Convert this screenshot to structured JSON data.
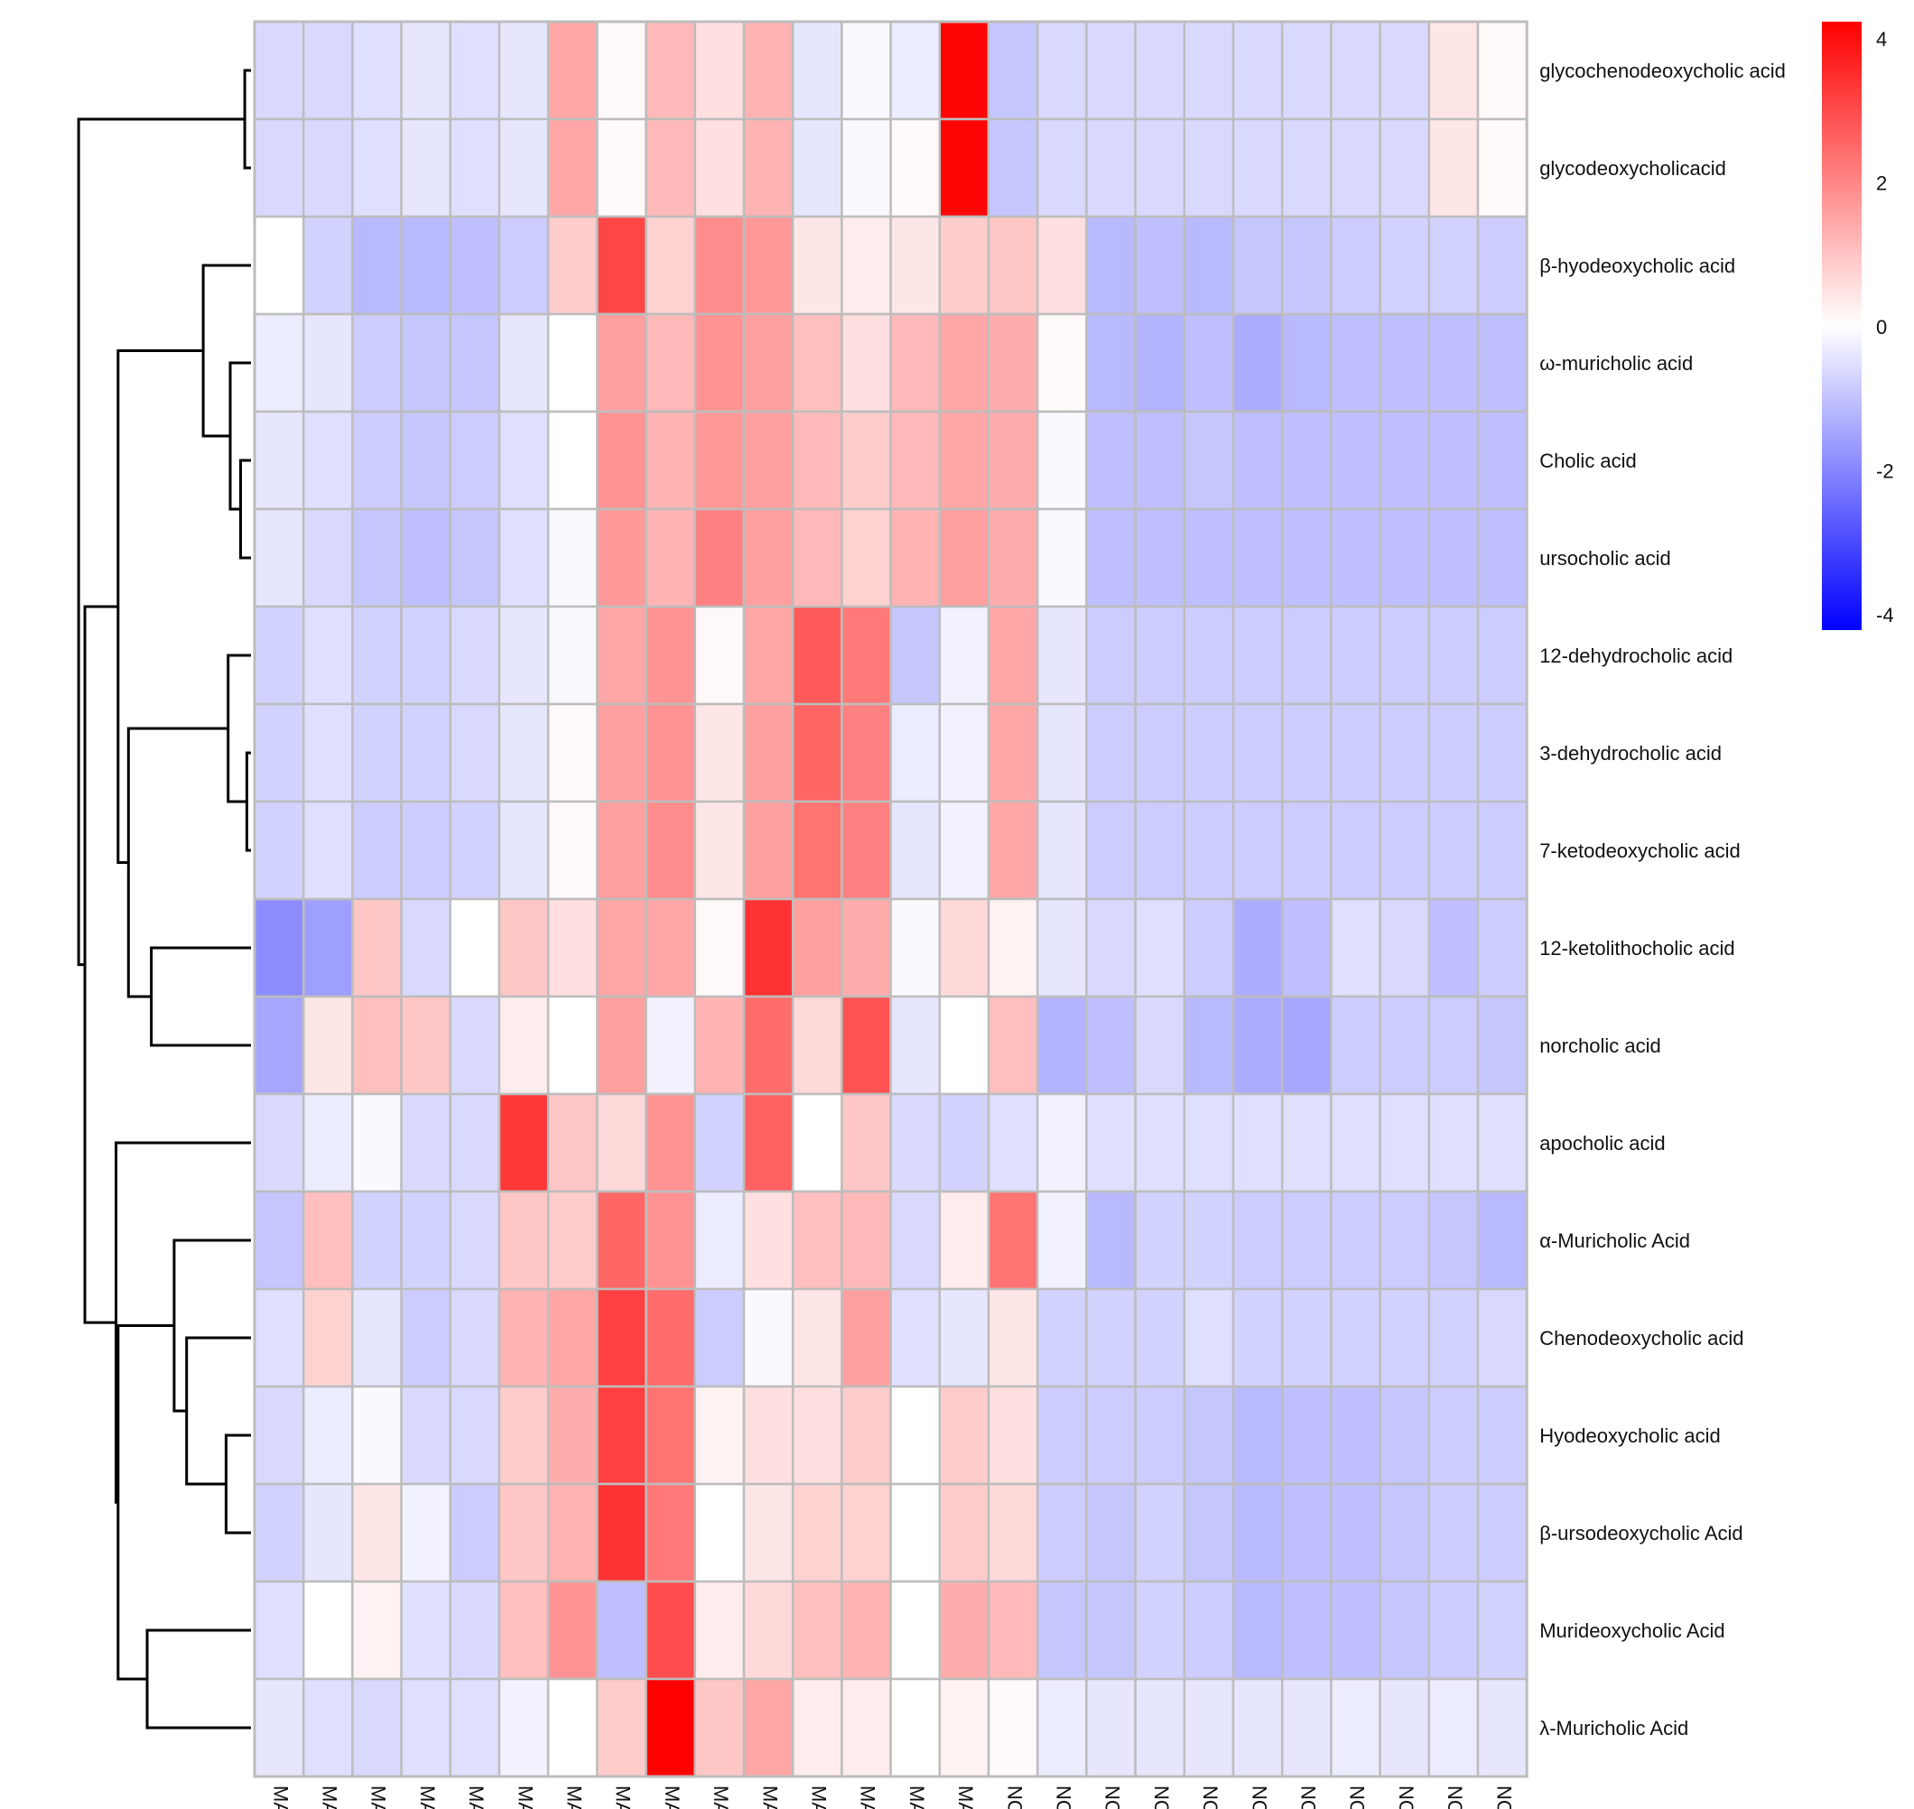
{
  "chart_data": {
    "type": "heatmap",
    "title": "",
    "xlabel": "",
    "ylabel": "",
    "color_scale": {
      "min": -4,
      "max": 4,
      "low_color": "#0000ff",
      "mid_color": "#ffffff",
      "high_color": "#ff0000",
      "ticks": [
        "4",
        "2",
        "0",
        "-2",
        "-4"
      ],
      "tick_values": [
        4,
        2,
        0,
        -2,
        -4
      ]
    },
    "grid_color": "#bdbdbd",
    "columns": [
      "MA",
      "MA",
      "MA",
      "MA",
      "MA",
      "MA",
      "MA",
      "MA",
      "MA",
      "MA",
      "MA",
      "MA",
      "MA",
      "MA",
      "MA",
      "NC",
      "NC",
      "NC",
      "NC",
      "NC",
      "NC",
      "NC",
      "NC",
      "NC",
      "NC",
      "NC"
    ],
    "rows": [
      "glycochenodeoxycholic acid",
      "glycodeoxycholicacid",
      "β-hyodeoxycholic acid",
      "ω-muricholic acid",
      "Cholic acid",
      "ursocholic acid",
      "12-dehydrocholic acid",
      "3-dehydrocholic acid",
      "7-ketodeoxycholic acid",
      "12-ketolithocholic acid",
      "norcholic acid",
      "apocholic acid",
      "α-Muricholic Acid",
      "Chenodeoxycholic acid",
      "Hyodeoxycholic acid",
      "β-ursodeoxycholic Acid",
      "Murideoxycholic Acid",
      "λ-Muricholic Acid"
    ],
    "values": [
      [
        -0.6,
        -0.6,
        -0.5,
        -0.4,
        -0.5,
        -0.4,
        1.4,
        0.1,
        1.1,
        0.5,
        1.2,
        -0.4,
        -0.1,
        -0.3,
        3.9,
        -0.9,
        -0.6,
        -0.6,
        -0.6,
        -0.6,
        -0.6,
        -0.6,
        -0.6,
        -0.6,
        0.4,
        0.1
      ],
      [
        -0.6,
        -0.6,
        -0.5,
        -0.4,
        -0.5,
        -0.4,
        1.4,
        0.1,
        1.1,
        0.5,
        1.2,
        -0.4,
        -0.1,
        0.1,
        3.9,
        -0.9,
        -0.6,
        -0.6,
        -0.6,
        -0.6,
        -0.6,
        -0.6,
        -0.6,
        -0.6,
        0.4,
        0.1
      ],
      [
        0.0,
        -0.7,
        -1.1,
        -1.1,
        -1.0,
        -0.8,
        0.8,
        2.9,
        0.7,
        1.8,
        1.6,
        0.4,
        0.3,
        0.4,
        0.8,
        0.9,
        0.5,
        -1.1,
        -1.0,
        -1.1,
        -0.9,
        -0.9,
        -0.8,
        -0.7,
        -0.7,
        -0.8
      ],
      [
        -0.3,
        -0.4,
        -0.8,
        -0.9,
        -0.9,
        -0.4,
        0.0,
        1.5,
        1.1,
        1.7,
        1.5,
        1.0,
        0.5,
        1.1,
        1.4,
        1.3,
        0.1,
        -1.1,
        -1.2,
        -1.0,
        -1.3,
        -1.1,
        -1.0,
        -1.0,
        -1.0,
        -1.0
      ],
      [
        -0.4,
        -0.5,
        -0.8,
        -0.9,
        -0.8,
        -0.5,
        0.0,
        1.7,
        1.2,
        1.6,
        1.5,
        1.1,
        0.8,
        1.1,
        1.4,
        1.3,
        -0.1,
        -1.0,
        -1.0,
        -0.9,
        -1.0,
        -1.0,
        -1.0,
        -1.0,
        -1.0,
        -1.0
      ],
      [
        -0.4,
        -0.6,
        -0.9,
        -1.0,
        -0.9,
        -0.5,
        -0.1,
        1.6,
        1.2,
        2.0,
        1.5,
        1.1,
        0.7,
        1.2,
        1.5,
        1.3,
        -0.1,
        -1.0,
        -1.0,
        -1.0,
        -1.0,
        -1.0,
        -1.0,
        -1.0,
        -1.0,
        -1.0
      ],
      [
        -0.7,
        -0.5,
        -0.7,
        -0.7,
        -0.6,
        -0.4,
        -0.1,
        1.4,
        1.7,
        0.1,
        1.4,
        2.6,
        2.1,
        -0.9,
        -0.2,
        1.4,
        -0.4,
        -0.8,
        -0.8,
        -0.8,
        -0.8,
        -0.8,
        -0.8,
        -0.8,
        -0.8,
        -0.8
      ],
      [
        -0.7,
        -0.5,
        -0.7,
        -0.7,
        -0.6,
        -0.4,
        0.1,
        1.5,
        1.7,
        0.4,
        1.5,
        2.4,
        2.0,
        -0.3,
        -0.2,
        1.4,
        -0.4,
        -0.8,
        -0.8,
        -0.8,
        -0.8,
        -0.8,
        -0.8,
        -0.8,
        -0.8,
        -0.8
      ],
      [
        -0.7,
        -0.5,
        -0.8,
        -0.8,
        -0.7,
        -0.4,
        0.1,
        1.5,
        1.8,
        0.4,
        1.5,
        2.2,
        2.0,
        -0.4,
        -0.2,
        1.4,
        -0.4,
        -0.8,
        -0.8,
        -0.8,
        -0.8,
        -0.8,
        -0.8,
        -0.8,
        -0.8,
        -0.8
      ],
      [
        -1.8,
        -1.5,
        0.9,
        -0.6,
        0.0,
        0.9,
        0.5,
        1.4,
        1.4,
        0.1,
        3.2,
        1.5,
        1.3,
        -0.1,
        0.6,
        0.2,
        -0.4,
        -0.6,
        -0.5,
        -0.8,
        -1.3,
        -1.0,
        -0.5,
        -0.6,
        -1.0,
        -0.8
      ],
      [
        -1.4,
        0.4,
        1.0,
        0.9,
        -0.6,
        0.3,
        0.0,
        1.5,
        -0.2,
        1.2,
        2.3,
        0.6,
        2.7,
        -0.4,
        0.0,
        1.0,
        -1.2,
        -1.0,
        -0.6,
        -1.1,
        -1.3,
        -1.4,
        -0.8,
        -0.8,
        -0.8,
        -0.9
      ],
      [
        -0.6,
        -0.3,
        -0.1,
        -0.6,
        -0.6,
        3.1,
        0.9,
        0.6,
        1.7,
        -0.7,
        2.5,
        0.0,
        0.9,
        -0.6,
        -0.7,
        -0.5,
        -0.2,
        -0.5,
        -0.5,
        -0.5,
        -0.5,
        -0.5,
        -0.5,
        -0.5,
        -0.5,
        -0.5
      ],
      [
        -0.9,
        1.0,
        -0.7,
        -0.7,
        -0.6,
        0.9,
        0.8,
        2.4,
        1.7,
        -0.3,
        0.5,
        1.0,
        1.1,
        -0.6,
        0.3,
        2.2,
        -0.2,
        -1.1,
        -0.7,
        -0.7,
        -0.8,
        -0.8,
        -0.8,
        -0.8,
        -0.9,
        -1.1
      ],
      [
        -0.5,
        0.7,
        -0.4,
        -0.8,
        -0.6,
        1.2,
        1.4,
        3.0,
        2.3,
        -0.8,
        -0.1,
        0.4,
        1.5,
        -0.5,
        -0.4,
        0.4,
        -0.7,
        -0.7,
        -0.7,
        -0.5,
        -0.7,
        -0.7,
        -0.7,
        -0.7,
        -0.7,
        -0.6
      ],
      [
        -0.6,
        -0.3,
        -0.1,
        -0.6,
        -0.6,
        0.8,
        1.3,
        3.0,
        2.2,
        0.2,
        0.5,
        0.5,
        0.8,
        0.0,
        0.8,
        0.5,
        -0.8,
        -0.8,
        -0.8,
        -0.9,
        -1.1,
        -1.0,
        -1.0,
        -0.9,
        -0.8,
        -0.8
      ],
      [
        -0.7,
        -0.4,
        0.4,
        -0.2,
        -0.8,
        0.9,
        1.2,
        3.2,
        2.1,
        0.0,
        0.4,
        0.7,
        0.7,
        0.0,
        0.8,
        0.6,
        -0.8,
        -0.9,
        -0.7,
        -0.9,
        -1.1,
        -1.0,
        -1.0,
        -0.9,
        -0.8,
        -0.8
      ],
      [
        -0.5,
        0.0,
        0.2,
        -0.5,
        -0.6,
        1.0,
        1.7,
        -1.0,
        2.8,
        0.3,
        0.6,
        1.0,
        1.2,
        0.0,
        1.3,
        1.1,
        -0.9,
        -0.9,
        -0.7,
        -0.8,
        -1.1,
        -1.0,
        -1.0,
        -0.9,
        -0.8,
        -0.7
      ],
      [
        -0.4,
        -0.5,
        -0.6,
        -0.5,
        -0.5,
        -0.2,
        0.0,
        0.8,
        4.0,
        0.9,
        1.4,
        0.3,
        0.3,
        0.0,
        0.2,
        0.1,
        -0.3,
        -0.4,
        -0.4,
        -0.4,
        -0.4,
        -0.4,
        -0.3,
        -0.4,
        -0.3,
        -0.4
      ]
    ],
    "row_dendrogram": {
      "leaves": 18,
      "merges": [
        {
          "a": "L0",
          "b": "L1",
          "h": 0.03
        },
        {
          "a": "L4",
          "b": "L5",
          "h": 0.05
        },
        {
          "a": "L3",
          "b": "M1",
          "h": 0.1
        },
        {
          "a": "L2",
          "b": "M2",
          "h": 0.23
        },
        {
          "a": "L7",
          "b": "L8",
          "h": 0.02
        },
        {
          "a": "L6",
          "b": "M4",
          "h": 0.11
        },
        {
          "a": "L9",
          "b": "L10",
          "h": 0.48
        },
        {
          "a": "M5",
          "b": "M6",
          "h": 0.59
        },
        {
          "a": "M3",
          "b": "M7",
          "h": 0.64
        },
        {
          "a": "L14",
          "b": "L15",
          "h": 0.12
        },
        {
          "a": "L13",
          "b": "M9",
          "h": 0.31
        },
        {
          "a": "L12",
          "b": "M10",
          "h": 0.37
        },
        {
          "a": "L16",
          "b": "L17",
          "h": 0.5
        },
        {
          "a": "M11",
          "b": "M12",
          "h": 0.64
        },
        {
          "a": "L11",
          "b": "M13",
          "h": 0.65
        },
        {
          "a": "M8",
          "b": "M14",
          "h": 0.8
        },
        {
          "a": "M0",
          "b": "M15",
          "h": 0.83
        }
      ]
    }
  }
}
